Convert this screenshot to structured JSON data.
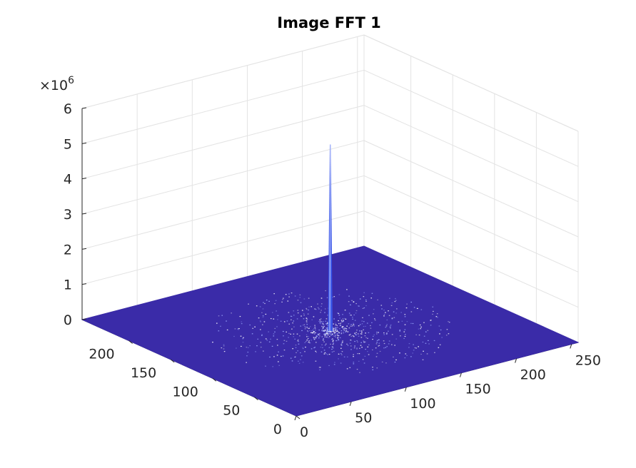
{
  "chart_data": {
    "type": "surface",
    "title": "Image FFT 1",
    "xlabel": "",
    "ylabel": "",
    "zlabel": "",
    "x_ticks": [
      0,
      50,
      100,
      150,
      200,
      250
    ],
    "y_ticks": [
      0,
      50,
      100,
      150,
      200
    ],
    "z_ticks": [
      0,
      1,
      2,
      3,
      4,
      5,
      6
    ],
    "z_multiplier_base": "×10",
    "z_multiplier_exp": "6",
    "xlim": [
      0,
      256
    ],
    "ylim": [
      0,
      256
    ],
    "zlim": [
      0,
      6000000
    ],
    "grid": true,
    "surface_color": "#3a2ba8",
    "peak": {
      "x": 128,
      "y": 128,
      "z": 5300000
    },
    "background_max_z": 60000
  }
}
